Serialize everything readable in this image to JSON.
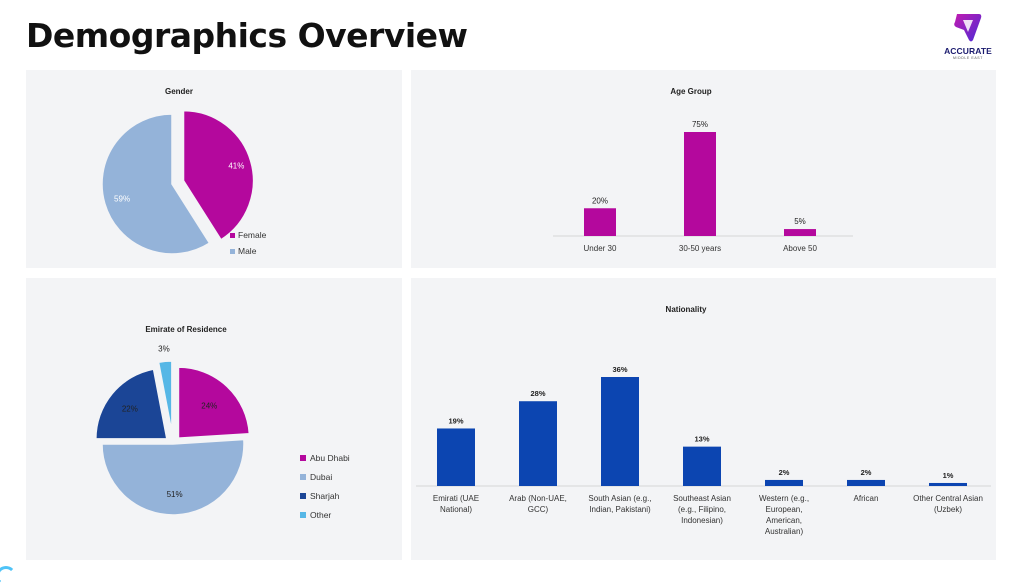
{
  "page": {
    "title": "Demographics Overview"
  },
  "logo": {
    "text": "ACCURATE",
    "subtext": "MIDDLE EAST"
  },
  "colors": {
    "magenta": "#b4089d",
    "light_blue": "#94b3d9",
    "dark_blue": "#1b4596",
    "sky_blue": "#56b7e6",
    "nat_blue": "#0c45b1"
  },
  "chart_data": [
    {
      "type": "pie",
      "title": "Gender",
      "labels": [
        "Female",
        "Male"
      ],
      "values": [
        41,
        59
      ],
      "value_labels": [
        "41%",
        "59%"
      ],
      "colors": [
        "#b4089d",
        "#94b3d9"
      ],
      "legend": "right"
    },
    {
      "type": "bar",
      "title": "Age Group",
      "categories": [
        "Under 30",
        "30-50 years",
        "Above 50"
      ],
      "values": [
        20,
        75,
        5
      ],
      "value_labels": [
        "20%",
        "75%",
        "5%"
      ],
      "color": "#b4089d"
    },
    {
      "type": "pie",
      "title": "Emirate of Residence",
      "labels": [
        "Abu Dhabi",
        "Dubai",
        "Sharjah",
        "Other"
      ],
      "values": [
        24,
        51,
        22,
        3
      ],
      "value_labels": [
        "24%",
        "51%",
        "22%",
        "3%"
      ],
      "colors": [
        "#b4089d",
        "#94b3d9",
        "#1b4596",
        "#56b7e6"
      ],
      "legend": "right"
    },
    {
      "type": "bar",
      "title": "Nationality",
      "categories": [
        [
          "Emirati (UAE",
          "National)"
        ],
        [
          "Arab (Non-UAE,",
          "GCC)"
        ],
        [
          "South Asian (e.g.,",
          "Indian, Pakistani)"
        ],
        [
          "Southeast Asian",
          "(e.g., Filipino,",
          "Indonesian)"
        ],
        [
          "Western (e.g.,",
          "European,",
          "American,",
          "Australian)"
        ],
        [
          "African"
        ],
        [
          "Other Central Asian",
          "(Uzbek)"
        ]
      ],
      "values": [
        19,
        28,
        36,
        13,
        2,
        2,
        1
      ],
      "value_labels": [
        "19%",
        "28%",
        "36%",
        "13%",
        "2%",
        "2%",
        "1%"
      ],
      "color": "#0c45b1"
    }
  ]
}
